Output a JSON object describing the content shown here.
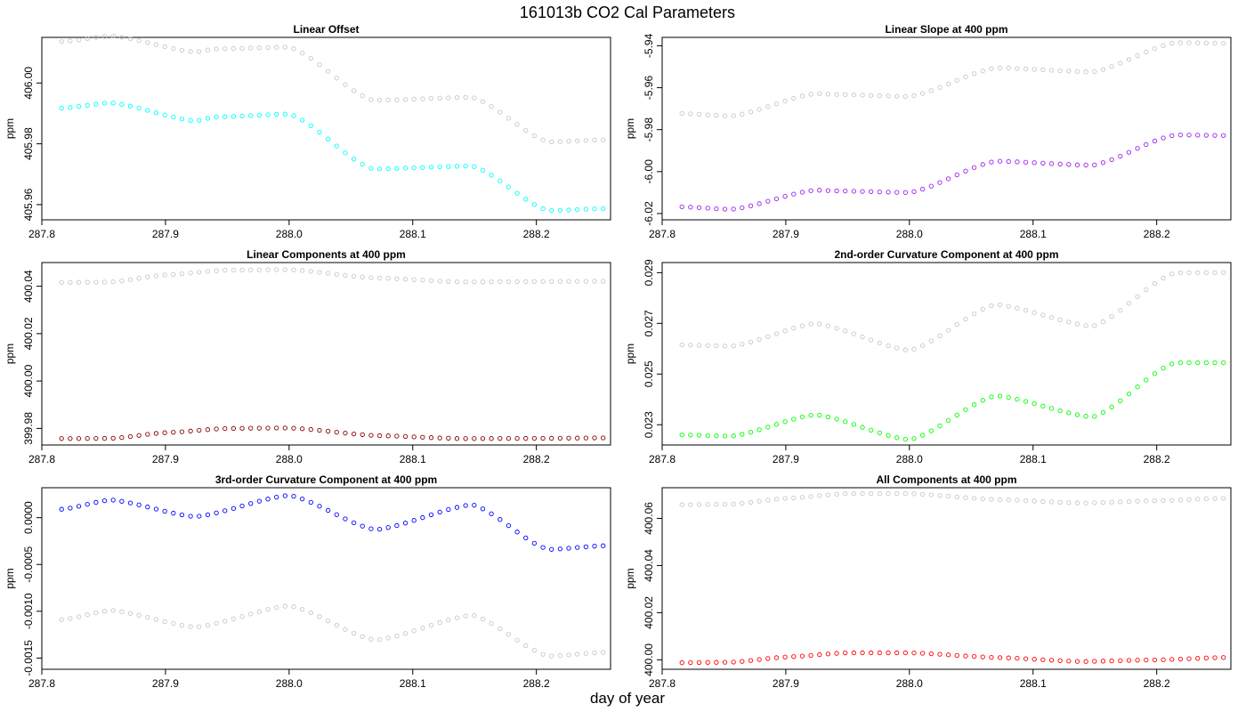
{
  "figure": {
    "title": "161013b   CO2 Cal Parameters",
    "xlabel": "day of year"
  },
  "chart_data": [
    {
      "type": "scatter",
      "title": "Linear Offset",
      "xlabel": "",
      "ylabel": "ppm",
      "xlim": [
        287.8,
        288.26
      ],
      "ylim": [
        405.955,
        406.015
      ],
      "xticks": [
        287.8,
        287.9,
        288.0,
        288.1,
        288.2
      ],
      "xtick_labels": [
        "287.8",
        "287.9",
        "288.0",
        "288.1",
        "288.2"
      ],
      "yticks": [
        405.96,
        405.98,
        406.0
      ],
      "ytick_labels": [
        "405.96",
        "405.98",
        "406.00"
      ],
      "grid": false,
      "x_range": [
        287.816,
        288.254
      ],
      "n_points": 64,
      "series": [
        {
          "color": "#c8c8c8",
          "knots": [
            [
              287.816,
              406.0136
            ],
            [
              287.856,
              406.0155
            ],
            [
              287.924,
              406.0102
            ],
            [
              287.94,
              406.0112
            ],
            [
              288.0,
              406.0118
            ],
            [
              288.068,
              405.9943
            ],
            [
              288.148,
              405.9953
            ],
            [
              288.21,
              405.9806
            ],
            [
              288.254,
              405.9813
            ]
          ]
        },
        {
          "color": "#00ffff",
          "knots": [
            [
              287.816,
              405.9917
            ],
            [
              287.856,
              405.9935
            ],
            [
              287.924,
              405.9875
            ],
            [
              287.94,
              405.9888
            ],
            [
              288.0,
              405.9898
            ],
            [
              288.068,
              405.9717
            ],
            [
              288.148,
              405.9727
            ],
            [
              288.21,
              405.958
            ],
            [
              288.254,
              405.9587
            ]
          ]
        }
      ]
    },
    {
      "type": "scatter",
      "title": "Linear Slope at 400 ppm",
      "xlabel": "",
      "ylabel": "ppm",
      "xlim": [
        287.8,
        288.26
      ],
      "ylim": [
        -6.023,
        -5.936
      ],
      "xticks": [
        287.8,
        287.9,
        288.0,
        288.1,
        288.2
      ],
      "xtick_labels": [
        "287.8",
        "287.9",
        "288.0",
        "288.1",
        "288.2"
      ],
      "yticks": [
        -6.02,
        -6.0,
        -5.98,
        -5.96,
        -5.94
      ],
      "ytick_labels": [
        "-6.02",
        "-6.00",
        "-5.98",
        "-5.96",
        "-5.94"
      ],
      "grid": false,
      "x_range": [
        287.816,
        288.254
      ],
      "n_points": 64,
      "series": [
        {
          "color": "#c8c8c8",
          "knots": [
            [
              287.816,
              -5.9723
            ],
            [
              287.856,
              -5.9735
            ],
            [
              287.924,
              -5.9628
            ],
            [
              287.94,
              -5.9632
            ],
            [
              288.0,
              -5.9642
            ],
            [
              288.07,
              -5.9505
            ],
            [
              288.148,
              -5.9525
            ],
            [
              288.215,
              -5.9385
            ],
            [
              288.254,
              -5.9388
            ]
          ]
        },
        {
          "color": "#a020f0",
          "knots": [
            [
              287.816,
              -6.0168
            ],
            [
              287.856,
              -6.018
            ],
            [
              287.924,
              -6.0088
            ],
            [
              287.94,
              -6.0092
            ],
            [
              288.0,
              -6.01
            ],
            [
              288.07,
              -5.995
            ],
            [
              288.148,
              -5.997
            ],
            [
              288.215,
              -5.9825
            ],
            [
              288.254,
              -5.9828
            ]
          ]
        }
      ]
    },
    {
      "type": "scatter",
      "title": "Linear Components at 400 ppm",
      "xlabel": "",
      "ylabel": "ppm",
      "xlim": [
        287.8,
        288.26
      ],
      "ylim": [
        399.973,
        400.05
      ],
      "xticks": [
        287.8,
        287.9,
        288.0,
        288.1,
        288.2
      ],
      "xtick_labels": [
        "287.8",
        "287.9",
        "288.0",
        "288.1",
        "288.2"
      ],
      "yticks": [
        399.98,
        400.0,
        400.02,
        400.04
      ],
      "ytick_labels": [
        "399.98",
        "400.00",
        "400.02",
        "400.04"
      ],
      "grid": false,
      "x_range": [
        287.816,
        288.254
      ],
      "n_points": 64,
      "series": [
        {
          "color": "#c8c8c8",
          "knots": [
            [
              287.816,
              400.0416
            ],
            [
              287.856,
              400.0418
            ],
            [
              287.9,
              400.0448
            ],
            [
              287.95,
              400.0468
            ],
            [
              288.0,
              400.047
            ],
            [
              288.07,
              400.0435
            ],
            [
              288.14,
              400.0418
            ],
            [
              288.2,
              400.042
            ],
            [
              288.254,
              400.0421
            ]
          ]
        },
        {
          "color": "#8b0000",
          "knots": [
            [
              287.816,
              399.9757
            ],
            [
              287.856,
              399.9758
            ],
            [
              287.9,
              399.9782
            ],
            [
              287.95,
              399.98
            ],
            [
              288.0,
              399.9802
            ],
            [
              288.07,
              399.977
            ],
            [
              288.14,
              399.9757
            ],
            [
              288.2,
              399.9758
            ],
            [
              288.254,
              399.976
            ]
          ]
        }
      ]
    },
    {
      "type": "scatter",
      "title": "2nd-order Curvature Component at 400 ppm",
      "xlabel": "",
      "ylabel": "ppm",
      "xlim": [
        287.8,
        288.26
      ],
      "ylim": [
        0.0222,
        0.0294
      ],
      "xticks": [
        287.8,
        287.9,
        288.0,
        288.1,
        288.2
      ],
      "xtick_labels": [
        "287.8",
        "287.9",
        "288.0",
        "288.1",
        "288.2"
      ],
      "yticks": [
        0.023,
        0.025,
        0.027,
        0.029
      ],
      "ytick_labels": [
        "0.023",
        "0.025",
        "0.027",
        "0.029"
      ],
      "grid": false,
      "x_range": [
        287.816,
        288.254
      ],
      "n_points": 64,
      "series": [
        {
          "color": "#c8c8c8",
          "knots": [
            [
              287.816,
              0.02615
            ],
            [
              287.856,
              0.0261
            ],
            [
              287.924,
              0.027
            ],
            [
              288.0,
              0.02593
            ],
            [
              288.07,
              0.02775
            ],
            [
              288.148,
              0.02688
            ],
            [
              288.215,
              0.029
            ],
            [
              288.254,
              0.029
            ]
          ]
        },
        {
          "color": "#00ff00",
          "knots": [
            [
              287.816,
              0.0226
            ],
            [
              287.856,
              0.02255
            ],
            [
              287.924,
              0.0234
            ],
            [
              288.0,
              0.0224
            ],
            [
              288.07,
              0.02415
            ],
            [
              288.148,
              0.0233
            ],
            [
              288.215,
              0.02545
            ],
            [
              288.254,
              0.02545
            ]
          ]
        }
      ]
    },
    {
      "type": "scatter",
      "title": "3rd-order Curvature Component at 400 ppm",
      "xlabel": "",
      "ylabel": "ppm",
      "xlim": [
        287.8,
        288.26
      ],
      "ylim": [
        -0.00162,
        0.00032
      ],
      "xticks": [
        287.8,
        287.9,
        288.0,
        288.1,
        288.2
      ],
      "xtick_labels": [
        "287.8",
        "287.9",
        "288.0",
        "288.1",
        "288.2"
      ],
      "yticks": [
        -0.0015,
        -0.001,
        -0.0005,
        0.0
      ],
      "ytick_labels": [
        "-0.0015",
        "-0.0010",
        "-0.0005",
        "0.0000"
      ],
      "grid": false,
      "x_range": [
        287.816,
        288.254
      ],
      "n_points": 64,
      "series": [
        {
          "color": "#c8c8c8",
          "knots": [
            [
              287.816,
              -0.00109
            ],
            [
              287.856,
              -0.00099
            ],
            [
              287.924,
              -0.00117
            ],
            [
              288.0,
              -0.00094
            ],
            [
              288.07,
              -0.00131
            ],
            [
              288.148,
              -0.00104
            ],
            [
              288.21,
              -0.00148
            ],
            [
              288.254,
              -0.00144
            ]
          ]
        },
        {
          "color": "#0000ff",
          "knots": [
            [
              287.816,
              9e-05
            ],
            [
              287.856,
              0.00019
            ],
            [
              287.924,
              1e-05
            ],
            [
              288.0,
              0.00024
            ],
            [
              288.07,
              -0.00013
            ],
            [
              288.148,
              0.00014
            ],
            [
              288.21,
              -0.00034
            ],
            [
              288.254,
              -0.0003
            ]
          ]
        }
      ]
    },
    {
      "type": "scatter",
      "title": "All Components at 400 ppm",
      "xlabel": "",
      "ylabel": "ppm",
      "xlim": [
        287.8,
        288.26
      ],
      "ylim": [
        399.996,
        400.073
      ],
      "xticks": [
        287.8,
        287.9,
        288.0,
        288.1,
        288.2
      ],
      "xtick_labels": [
        "287.8",
        "287.9",
        "288.0",
        "288.1",
        "288.2"
      ],
      "yticks": [
        400.0,
        400.02,
        400.04,
        400.06
      ],
      "ytick_labels": [
        "400.00",
        "400.02",
        "400.04",
        "400.06"
      ],
      "grid": false,
      "x_range": [
        287.816,
        288.254
      ],
      "n_points": 64,
      "series": [
        {
          "color": "#c8c8c8",
          "knots": [
            [
              287.816,
              400.0658
            ],
            [
              287.856,
              400.066
            ],
            [
              287.9,
              400.0685
            ],
            [
              287.95,
              400.0705
            ],
            [
              288.0,
              400.0705
            ],
            [
              288.07,
              400.068
            ],
            [
              288.14,
              400.0665
            ],
            [
              288.2,
              400.0675
            ],
            [
              288.254,
              400.0685
            ]
          ]
        },
        {
          "color": "#ff0000",
          "knots": [
            [
              287.816,
              399.9988
            ],
            [
              287.856,
              399.999
            ],
            [
              287.9,
              400.0012
            ],
            [
              287.95,
              400.003
            ],
            [
              288.0,
              400.003
            ],
            [
              288.07,
              400.001
            ],
            [
              288.14,
              399.9993
            ],
            [
              288.2,
              400.0
            ],
            [
              288.254,
              400.001
            ]
          ]
        }
      ]
    }
  ]
}
